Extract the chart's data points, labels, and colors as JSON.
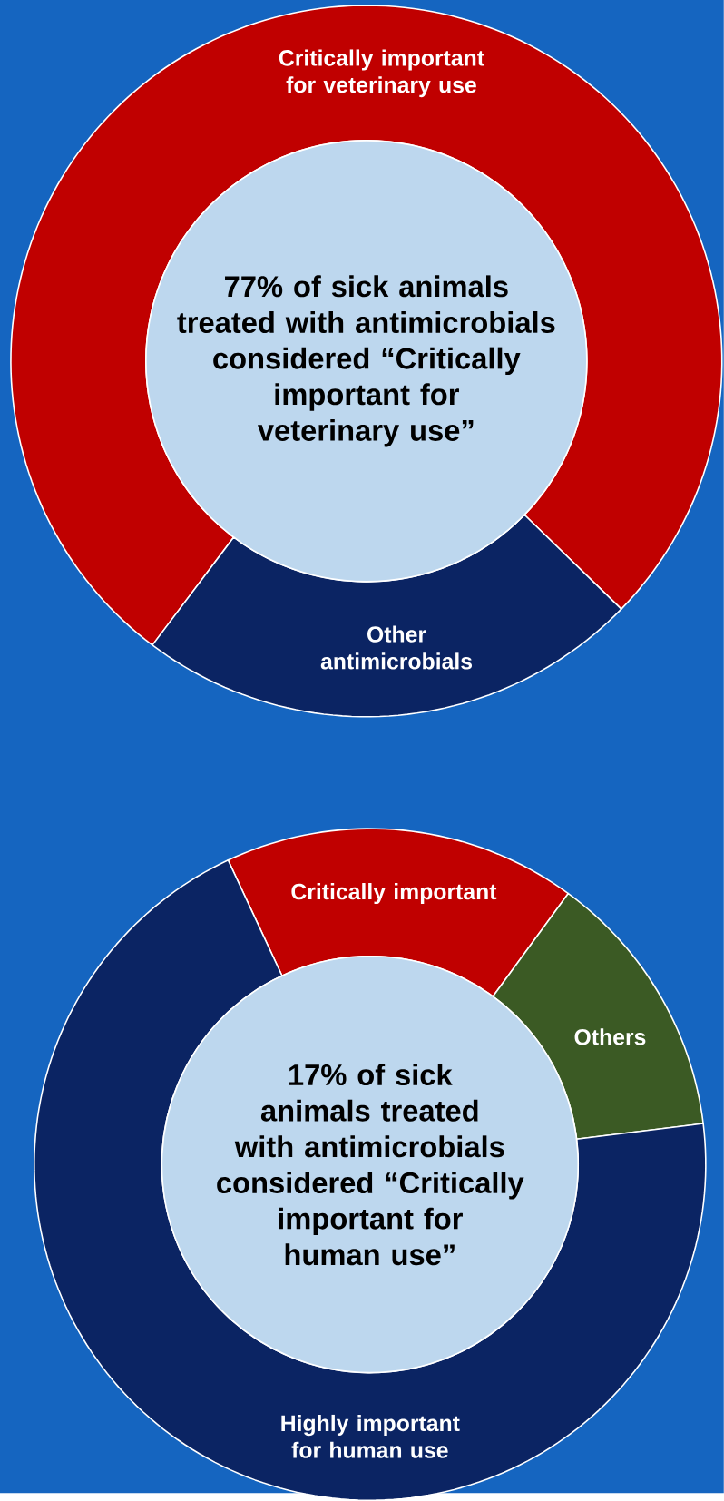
{
  "chart_data": [
    {
      "type": "donut",
      "title": "77% of sick animals treated with antimicrobials considered “Critically important for veterinary use”",
      "categories": [
        "Critically important for veterinary use",
        "Other antimicrobials"
      ],
      "values": [
        77,
        23
      ],
      "colors": [
        "#c00000",
        "#0b2463"
      ]
    },
    {
      "type": "donut",
      "title": "17% of sick animals treated with antimicrobials considered “Critically important for human use”",
      "categories": [
        "Critically important",
        "Others",
        "Highly important for human use"
      ],
      "values": [
        17,
        13,
        70
      ],
      "colors": [
        "#c00000",
        "#3b5a24",
        "#0b2463"
      ]
    }
  ]
}
